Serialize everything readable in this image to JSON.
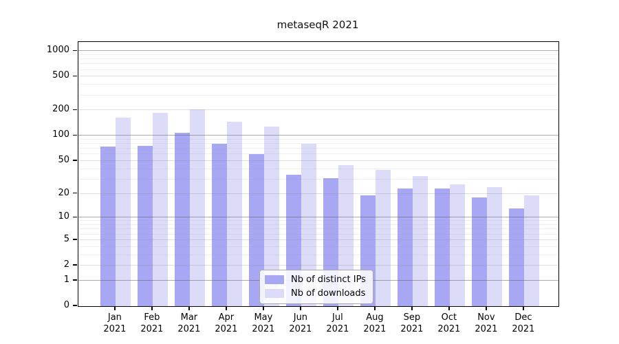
{
  "chart_data": {
    "type": "bar",
    "title": "metaseqR 2021",
    "categories": [
      "Jan",
      "Feb",
      "Mar",
      "Apr",
      "May",
      "Jun",
      "Jul",
      "Aug",
      "Sep",
      "Oct",
      "Nov",
      "Dec"
    ],
    "year_label": "2021",
    "series": [
      {
        "name": "Nb of distinct IPs",
        "key": "distinct-ips",
        "color": "#a7a7f4",
        "values": [
          75,
          76,
          109,
          81,
          60,
          34,
          31,
          19,
          23,
          23,
          18,
          13
        ]
      },
      {
        "name": "Nb of downloads",
        "key": "downloads",
        "color": "#dcdcf9",
        "values": [
          164,
          188,
          206,
          147,
          128,
          80,
          45,
          39,
          33,
          26,
          24,
          19
        ]
      }
    ],
    "yticks": [
      0,
      1,
      2,
      5,
      10,
      20,
      50,
      100,
      200,
      500,
      1000
    ],
    "yscale": "log1p",
    "ylim": [
      0,
      1280
    ],
    "xlabel": "",
    "ylabel": "",
    "grid": true,
    "legend_position": "bottom-center",
    "colors": {
      "bar_dark": "#a7a7f4",
      "bar_light": "#dcdcf9",
      "axis": "#000000",
      "grid_major": "#aeaeae",
      "grid_minor": "#e4e4e4",
      "text": "#000000"
    }
  }
}
